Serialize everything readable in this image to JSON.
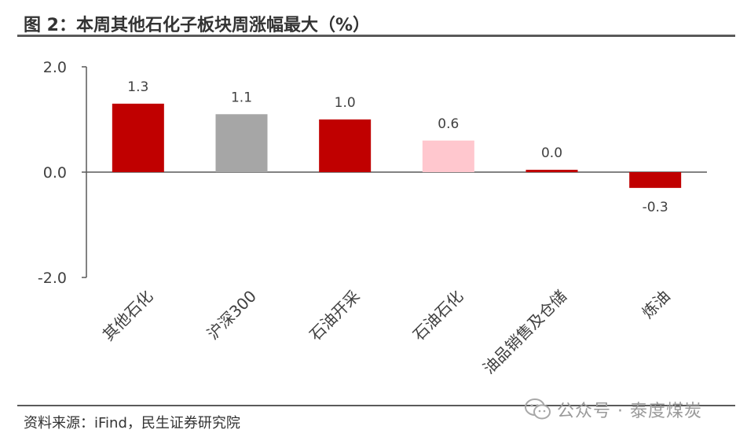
{
  "title": "图 2：本周其他石化子板块周涨幅最大（%）",
  "source": "资料来源：iFind，民生证券研究院",
  "watermark": "公众号 · 泰度煤炭",
  "chart_data": {
    "type": "bar",
    "title": "图 2：本周其他石化子板块周涨幅最大（%）",
    "xlabel": "",
    "ylabel": "",
    "ylim": [
      -2.0,
      2.0
    ],
    "yticks": [
      "2.0",
      "0.0",
      "-2.0"
    ],
    "ytick_values": [
      2.0,
      0.0,
      -2.0
    ],
    "grid": false,
    "categories": [
      "其他石化",
      "沪深300",
      "石油开采",
      "石油石化",
      "油品销售及仓储",
      "炼油"
    ],
    "values": [
      1.3,
      1.1,
      1.0,
      0.6,
      0.0,
      -0.3
    ],
    "labels": [
      "1.3",
      "1.1",
      "1.0",
      "0.6",
      "0.0",
      "-0.3"
    ],
    "colors": [
      "#c00000",
      "#a6a6a6",
      "#c00000",
      "#ffc7ce",
      "#c00000",
      "#c00000"
    ]
  }
}
